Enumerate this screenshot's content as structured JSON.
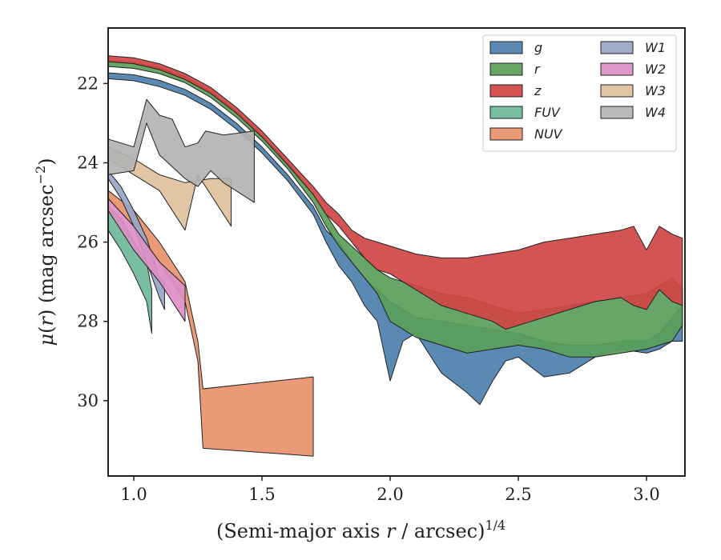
{
  "chart_data": {
    "type": "area",
    "xlabel": "(Semi-major axis r / arcsec)^{1/4}",
    "ylabel": "μ(r) (mag arcsec^{-2})",
    "xlim": [
      0.9,
      3.15
    ],
    "ylim": [
      31.9,
      20.6
    ],
    "y_inverted": true,
    "x_ticks": [
      "1.0",
      "1.5",
      "2.0",
      "2.5",
      "3.0"
    ],
    "x_tick_values": [
      1.0,
      1.5,
      2.0,
      2.5,
      3.0
    ],
    "y_ticks": [
      "22",
      "24",
      "26",
      "28",
      "30"
    ],
    "y_tick_values": [
      22,
      24,
      26,
      28,
      30
    ],
    "legend_position": "top-right",
    "series": [
      {
        "name": "g",
        "color": "#4c7fad",
        "upper": [
          [
            0.9,
            21.73
          ],
          [
            1.0,
            21.78
          ],
          [
            1.1,
            21.92
          ],
          [
            1.2,
            22.15
          ],
          [
            1.3,
            22.5
          ],
          [
            1.4,
            23.0
          ],
          [
            1.5,
            23.6
          ],
          [
            1.6,
            24.3
          ],
          [
            1.7,
            25.1
          ],
          [
            1.75,
            25.7
          ],
          [
            1.8,
            26.0
          ],
          [
            1.85,
            26.5
          ],
          [
            1.9,
            26.9
          ],
          [
            1.95,
            27.2
          ],
          [
            2.0,
            27.5
          ],
          [
            2.05,
            27.7
          ],
          [
            2.1,
            27.9
          ],
          [
            2.2,
            28.0
          ],
          [
            2.3,
            28.1
          ],
          [
            2.4,
            28.2
          ],
          [
            2.5,
            28.3
          ],
          [
            2.6,
            28.5
          ],
          [
            2.7,
            28.6
          ],
          [
            2.8,
            28.6
          ],
          [
            2.9,
            28.5
          ],
          [
            3.0,
            28.5
          ],
          [
            3.05,
            28.3
          ],
          [
            3.1,
            27.9
          ],
          [
            3.14,
            27.6
          ]
        ],
        "lower": [
          [
            0.9,
            21.88
          ],
          [
            1.0,
            21.93
          ],
          [
            1.1,
            22.08
          ],
          [
            1.2,
            22.3
          ],
          [
            1.3,
            22.65
          ],
          [
            1.4,
            23.15
          ],
          [
            1.5,
            23.75
          ],
          [
            1.6,
            24.45
          ],
          [
            1.7,
            25.3
          ],
          [
            1.75,
            26.0
          ],
          [
            1.8,
            26.6
          ],
          [
            1.85,
            27.0
          ],
          [
            1.9,
            27.6
          ],
          [
            1.95,
            28.0
          ],
          [
            2.0,
            29.5
          ],
          [
            2.05,
            28.5
          ],
          [
            2.1,
            28.3
          ],
          [
            2.2,
            29.3
          ],
          [
            2.3,
            29.8
          ],
          [
            2.35,
            30.1
          ],
          [
            2.4,
            29.5
          ],
          [
            2.45,
            29.0
          ],
          [
            2.5,
            28.9
          ],
          [
            2.6,
            29.4
          ],
          [
            2.7,
            29.3
          ],
          [
            2.8,
            28.9
          ],
          [
            2.9,
            28.7
          ],
          [
            3.0,
            28.8
          ],
          [
            3.05,
            28.7
          ],
          [
            3.1,
            28.5
          ],
          [
            3.14,
            28.5
          ]
        ]
      },
      {
        "name": "r",
        "color": "#5a9e5a",
        "upper": [
          [
            0.9,
            21.42
          ],
          [
            1.0,
            21.47
          ],
          [
            1.1,
            21.6
          ],
          [
            1.2,
            21.83
          ],
          [
            1.3,
            22.2
          ],
          [
            1.4,
            22.7
          ],
          [
            1.5,
            23.3
          ],
          [
            1.6,
            24.0
          ],
          [
            1.7,
            24.8
          ],
          [
            1.75,
            25.3
          ],
          [
            1.8,
            25.8
          ],
          [
            1.85,
            26.1
          ],
          [
            1.9,
            26.4
          ],
          [
            1.95,
            26.7
          ],
          [
            2.0,
            26.9
          ],
          [
            2.1,
            27.1
          ],
          [
            2.2,
            27.3
          ],
          [
            2.3,
            27.4
          ],
          [
            2.4,
            27.6
          ],
          [
            2.5,
            27.8
          ],
          [
            2.6,
            27.7
          ],
          [
            2.7,
            27.6
          ],
          [
            2.8,
            27.5
          ],
          [
            2.9,
            27.4
          ],
          [
            3.0,
            27.3
          ],
          [
            3.1,
            26.9
          ],
          [
            3.14,
            27.2
          ]
        ],
        "lower": [
          [
            0.9,
            21.57
          ],
          [
            1.0,
            21.62
          ],
          [
            1.1,
            21.75
          ],
          [
            1.2,
            21.98
          ],
          [
            1.3,
            22.35
          ],
          [
            1.4,
            22.85
          ],
          [
            1.5,
            23.45
          ],
          [
            1.6,
            24.15
          ],
          [
            1.7,
            25.0
          ],
          [
            1.75,
            25.6
          ],
          [
            1.8,
            26.1
          ],
          [
            1.85,
            26.5
          ],
          [
            1.9,
            26.9
          ],
          [
            1.95,
            27.3
          ],
          [
            2.0,
            28.0
          ],
          [
            2.05,
            28.2
          ],
          [
            2.1,
            28.4
          ],
          [
            2.2,
            28.6
          ],
          [
            2.3,
            28.8
          ],
          [
            2.4,
            28.7
          ],
          [
            2.5,
            28.6
          ],
          [
            2.6,
            28.7
          ],
          [
            2.7,
            28.9
          ],
          [
            2.8,
            28.9
          ],
          [
            2.9,
            28.8
          ],
          [
            3.0,
            28.7
          ],
          [
            3.05,
            28.6
          ],
          [
            3.1,
            28.5
          ],
          [
            3.14,
            28.1
          ]
        ]
      },
      {
        "name": "z",
        "color": "#d04545",
        "upper": [
          [
            0.9,
            21.3
          ],
          [
            1.0,
            21.35
          ],
          [
            1.1,
            21.5
          ],
          [
            1.2,
            21.75
          ],
          [
            1.3,
            22.1
          ],
          [
            1.4,
            22.6
          ],
          [
            1.5,
            23.2
          ],
          [
            1.6,
            23.9
          ],
          [
            1.7,
            24.6
          ],
          [
            1.75,
            25.0
          ],
          [
            1.8,
            25.3
          ],
          [
            1.85,
            25.7
          ],
          [
            1.9,
            25.9
          ],
          [
            1.95,
            26.0
          ],
          [
            2.0,
            26.1
          ],
          [
            2.05,
            26.2
          ],
          [
            2.1,
            26.3
          ],
          [
            2.2,
            26.4
          ],
          [
            2.3,
            26.4
          ],
          [
            2.4,
            26.3
          ],
          [
            2.5,
            26.2
          ],
          [
            2.6,
            26.0
          ],
          [
            2.7,
            25.9
          ],
          [
            2.8,
            25.8
          ],
          [
            2.9,
            25.7
          ],
          [
            2.95,
            25.6
          ],
          [
            3.0,
            26.2
          ],
          [
            3.05,
            25.6
          ],
          [
            3.1,
            25.8
          ],
          [
            3.14,
            25.9
          ]
        ],
        "lower": [
          [
            0.9,
            21.45
          ],
          [
            1.0,
            21.5
          ],
          [
            1.1,
            21.65
          ],
          [
            1.2,
            21.9
          ],
          [
            1.3,
            22.25
          ],
          [
            1.4,
            22.75
          ],
          [
            1.5,
            23.35
          ],
          [
            1.6,
            24.05
          ],
          [
            1.7,
            24.8
          ],
          [
            1.75,
            25.3
          ],
          [
            1.8,
            25.6
          ],
          [
            1.85,
            26.0
          ],
          [
            1.9,
            26.4
          ],
          [
            1.95,
            26.7
          ],
          [
            2.0,
            26.8
          ],
          [
            2.05,
            27.0
          ],
          [
            2.1,
            27.2
          ],
          [
            2.2,
            27.6
          ],
          [
            2.3,
            27.8
          ],
          [
            2.4,
            28.0
          ],
          [
            2.45,
            28.2
          ],
          [
            2.5,
            28.1
          ],
          [
            2.6,
            27.9
          ],
          [
            2.7,
            27.7
          ],
          [
            2.8,
            27.5
          ],
          [
            2.9,
            27.4
          ],
          [
            2.95,
            27.6
          ],
          [
            3.0,
            27.7
          ],
          [
            3.05,
            27.2
          ],
          [
            3.1,
            27.5
          ],
          [
            3.14,
            27.6
          ]
        ]
      },
      {
        "name": "FUV",
        "color": "#6fb89a",
        "upper": [
          [
            0.9,
            25.1
          ],
          [
            0.95,
            25.4
          ],
          [
            1.0,
            26.0
          ],
          [
            1.05,
            26.5
          ],
          [
            1.07,
            27.2
          ]
        ],
        "lower": [
          [
            0.9,
            25.7
          ],
          [
            0.95,
            26.2
          ],
          [
            1.0,
            26.8
          ],
          [
            1.05,
            27.5
          ],
          [
            1.07,
            28.3
          ]
        ]
      },
      {
        "name": "NUV",
        "color": "#e8916a",
        "upper": [
          [
            0.9,
            24.7
          ],
          [
            1.0,
            25.2
          ],
          [
            1.1,
            26.0
          ],
          [
            1.2,
            27.0
          ],
          [
            1.25,
            28.5
          ],
          [
            1.27,
            29.7
          ],
          [
            1.7,
            29.4
          ]
        ],
        "lower": [
          [
            0.9,
            24.9
          ],
          [
            1.0,
            25.6
          ],
          [
            1.1,
            26.5
          ],
          [
            1.2,
            27.5
          ],
          [
            1.25,
            29.0
          ],
          [
            1.27,
            31.2
          ],
          [
            1.7,
            31.4
          ]
        ]
      },
      {
        "name": "W1",
        "color": "#97a6c7",
        "upper": [
          [
            0.9,
            24.2
          ],
          [
            0.95,
            24.6
          ],
          [
            1.0,
            25.2
          ],
          [
            1.05,
            25.9
          ],
          [
            1.1,
            26.9
          ],
          [
            1.12,
            27.0
          ]
        ],
        "lower": [
          [
            0.9,
            24.4
          ],
          [
            0.95,
            24.9
          ],
          [
            1.0,
            25.6
          ],
          [
            1.05,
            26.5
          ],
          [
            1.1,
            27.4
          ],
          [
            1.12,
            27.7
          ]
        ]
      },
      {
        "name": "W2",
        "color": "#dc8fc4",
        "upper": [
          [
            0.9,
            24.9
          ],
          [
            1.0,
            25.6
          ],
          [
            1.1,
            26.5
          ],
          [
            1.2,
            27.1
          ]
        ],
        "lower": [
          [
            0.9,
            25.2
          ],
          [
            1.0,
            26.2
          ],
          [
            1.1,
            27.0
          ],
          [
            1.2,
            28.0
          ]
        ]
      },
      {
        "name": "W3",
        "color": "#dfc09d",
        "upper": [
          [
            0.9,
            23.6
          ],
          [
            1.0,
            23.9
          ],
          [
            1.1,
            24.3
          ],
          [
            1.2,
            24.5
          ],
          [
            1.3,
            24.4
          ],
          [
            1.38,
            24.4
          ]
        ],
        "lower": [
          [
            0.9,
            23.9
          ],
          [
            1.0,
            24.3
          ],
          [
            1.1,
            24.7
          ],
          [
            1.2,
            25.7
          ],
          [
            1.25,
            24.3
          ],
          [
            1.38,
            25.6
          ]
        ]
      },
      {
        "name": "W4",
        "color": "#b3b3b3",
        "upper": [
          [
            0.9,
            23.4
          ],
          [
            1.0,
            23.6
          ],
          [
            1.05,
            22.4
          ],
          [
            1.1,
            22.8
          ],
          [
            1.15,
            22.9
          ],
          [
            1.2,
            23.6
          ],
          [
            1.25,
            23.5
          ],
          [
            1.28,
            23.2
          ],
          [
            1.35,
            23.3
          ],
          [
            1.47,
            23.2
          ]
        ],
        "lower": [
          [
            0.9,
            24.3
          ],
          [
            1.0,
            24.2
          ],
          [
            1.05,
            23.0
          ],
          [
            1.1,
            23.8
          ],
          [
            1.2,
            24.4
          ],
          [
            1.25,
            24.6
          ],
          [
            1.3,
            24.2
          ],
          [
            1.35,
            24.5
          ],
          [
            1.47,
            25.0
          ]
        ]
      }
    ]
  }
}
